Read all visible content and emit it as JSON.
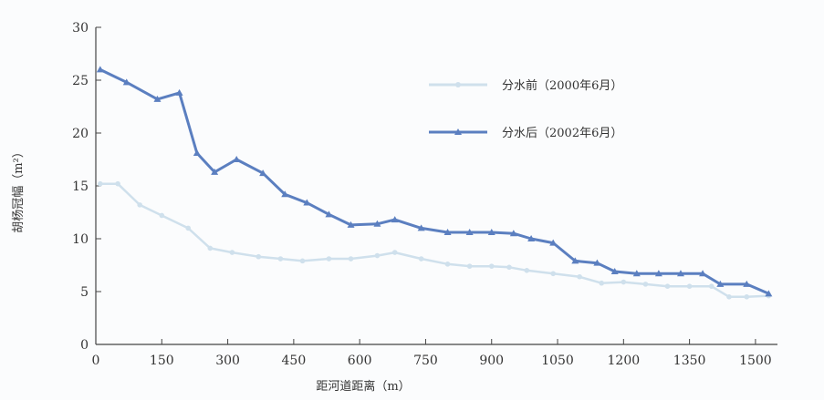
{
  "chart_data": {
    "type": "line",
    "title": "",
    "xlabel": "距河道距离（m）",
    "ylabel": "胡杨冠幅（m²）",
    "xlim": [
      0,
      1550
    ],
    "ylim": [
      0,
      30
    ],
    "xticks": [
      0,
      150,
      300,
      450,
      600,
      750,
      900,
      1050,
      1200,
      1350,
      1500
    ],
    "xtick_labels": [
      "0",
      "150",
      "300",
      "450",
      "600",
      "750",
      "900",
      "1050",
      "1200",
      "1350",
      "1500"
    ],
    "yticks": [
      0,
      5,
      10,
      15,
      20,
      25,
      30
    ],
    "ytick_labels": [
      "0",
      "5",
      "10",
      "15",
      "20",
      "25",
      "30"
    ],
    "legend_position": "top-right",
    "grid": false,
    "series": [
      {
        "name": "分水前（2000年6月）",
        "color": "#cfe0ec",
        "marker": "circle",
        "x": [
          10,
          50,
          100,
          150,
          210,
          260,
          310,
          370,
          420,
          470,
          530,
          580,
          640,
          680,
          740,
          800,
          850,
          900,
          940,
          980,
          1040,
          1100,
          1150,
          1200,
          1250,
          1300,
          1350,
          1400,
          1440,
          1480,
          1530
        ],
        "y": [
          15.2,
          15.2,
          13.2,
          12.2,
          11,
          9.1,
          8.7,
          8.3,
          8.1,
          7.9,
          8.1,
          8.1,
          8.4,
          8.7,
          8.1,
          7.6,
          7.4,
          7.4,
          7.3,
          7,
          6.7,
          6.4,
          5.8,
          5.9,
          5.7,
          5.5,
          5.5,
          5.5,
          4.5,
          4.5,
          4.6
        ]
      },
      {
        "name": "分水后（2002年6月）",
        "color": "#5b7fc0",
        "marker": "triangle",
        "x": [
          10,
          70,
          140,
          190,
          230,
          270,
          320,
          380,
          430,
          480,
          530,
          580,
          640,
          680,
          740,
          800,
          850,
          900,
          950,
          990,
          1040,
          1090,
          1140,
          1180,
          1230,
          1280,
          1330,
          1380,
          1420,
          1480,
          1530
        ],
        "y": [
          26,
          24.8,
          23.2,
          23.8,
          18.1,
          16.3,
          17.5,
          16.2,
          14.2,
          13.4,
          12.3,
          11.3,
          11.4,
          11.8,
          11,
          10.6,
          10.6,
          10.6,
          10.5,
          10,
          9.6,
          7.9,
          7.7,
          6.9,
          6.7,
          6.7,
          6.7,
          6.7,
          5.7,
          5.7,
          4.8
        ]
      }
    ]
  }
}
